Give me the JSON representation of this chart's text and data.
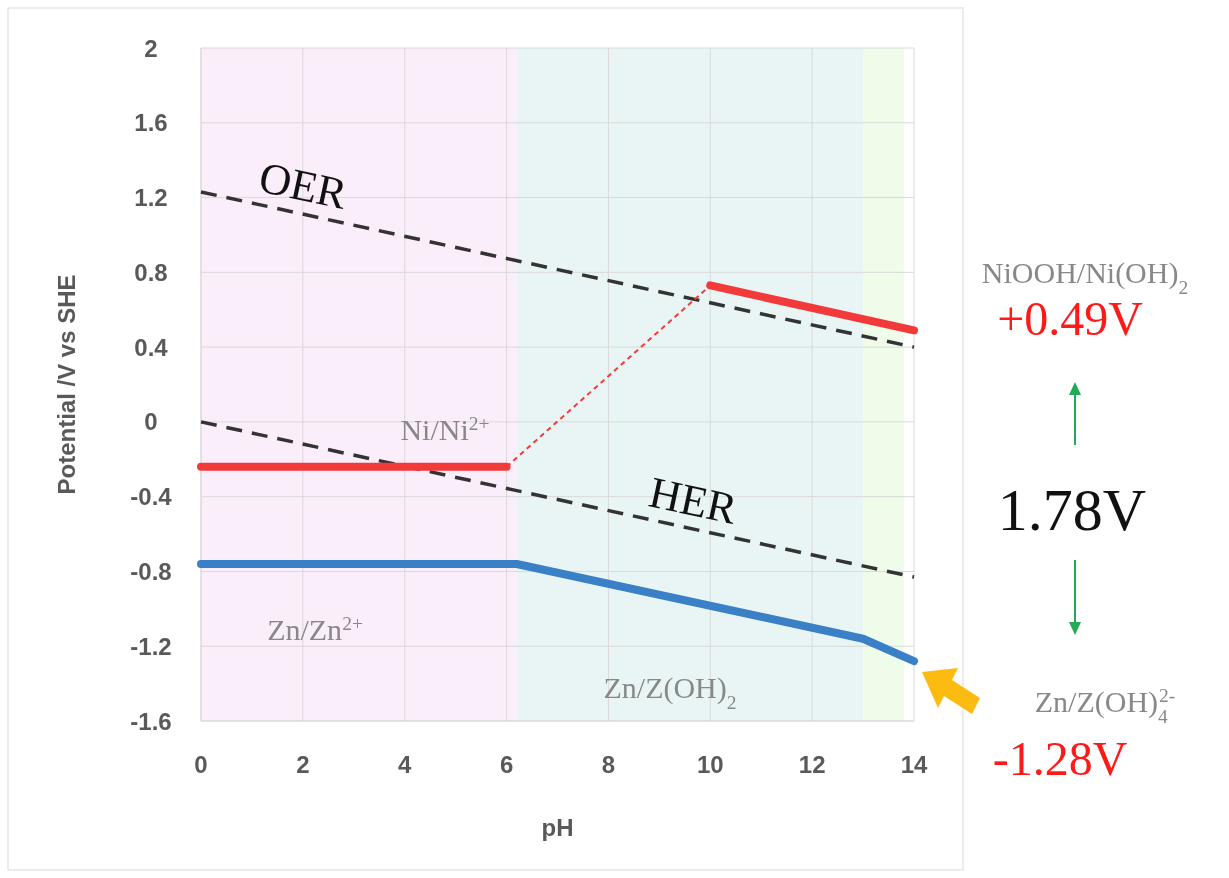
{
  "chart_data": {
    "type": "line",
    "xlabel": "pH",
    "ylabel": "Potential /V vs SHE",
    "xlim": [
      0,
      14
    ],
    "ylim": [
      -1.6,
      2
    ],
    "xticks": [
      0,
      2,
      4,
      6,
      8,
      10,
      12,
      14
    ],
    "yticks": [
      -1.6,
      -1.2,
      -0.8,
      -0.4,
      0,
      0.4,
      0.8,
      1.2,
      1.6,
      2
    ],
    "grid": true,
    "marker": "none",
    "bands": [
      {
        "axis": "x",
        "from": 0,
        "to": 6.2,
        "color": "#fbeefb"
      },
      {
        "axis": "x",
        "from": 6.2,
        "to": 13,
        "color": "#e9f5f5"
      },
      {
        "axis": "x",
        "from": 13,
        "to": 13.8,
        "color": "#f0fcea"
      }
    ],
    "series": [
      {
        "x": [
          0,
          14
        ],
        "values": [
          1.23,
          0.4
        ],
        "color": "#333333",
        "line_style": "dashed"
      },
      {
        "x": [
          0,
          14
        ],
        "values": [
          0,
          -0.83
        ],
        "color": "#333333",
        "line_style": "dashed"
      },
      {
        "x": [
          0,
          6
        ],
        "values": [
          -0.24,
          -0.24
        ],
        "color": "#f23a3a",
        "line_style": "solid"
      },
      {
        "x": [
          6,
          10
        ],
        "values": [
          -0.24,
          0.73
        ],
        "color": "#f23a3a",
        "line_style": "dotted"
      },
      {
        "x": [
          10,
          14
        ],
        "values": [
          0.73,
          0.49
        ],
        "color": "#f23a3a",
        "line_style": "solid"
      },
      {
        "x": [
          0,
          6.2,
          13,
          14
        ],
        "values": [
          -0.76,
          -0.76,
          -1.16,
          -1.28
        ],
        "color": "#3a80c6",
        "line_style": "solid"
      }
    ],
    "annotations": [
      "OER",
      "HER",
      "Ni/Ni$^{2+}$",
      "Zn/Zn$^{2+}$",
      "Zn/Z(OH)$_{2}$",
      "NiOOH/Ni(OH)$_{2}$",
      "+0.49V",
      "1.78V",
      "Zn/Z(OH)$_{4}$$^{2-}$",
      "-1.28V"
    ]
  }
}
